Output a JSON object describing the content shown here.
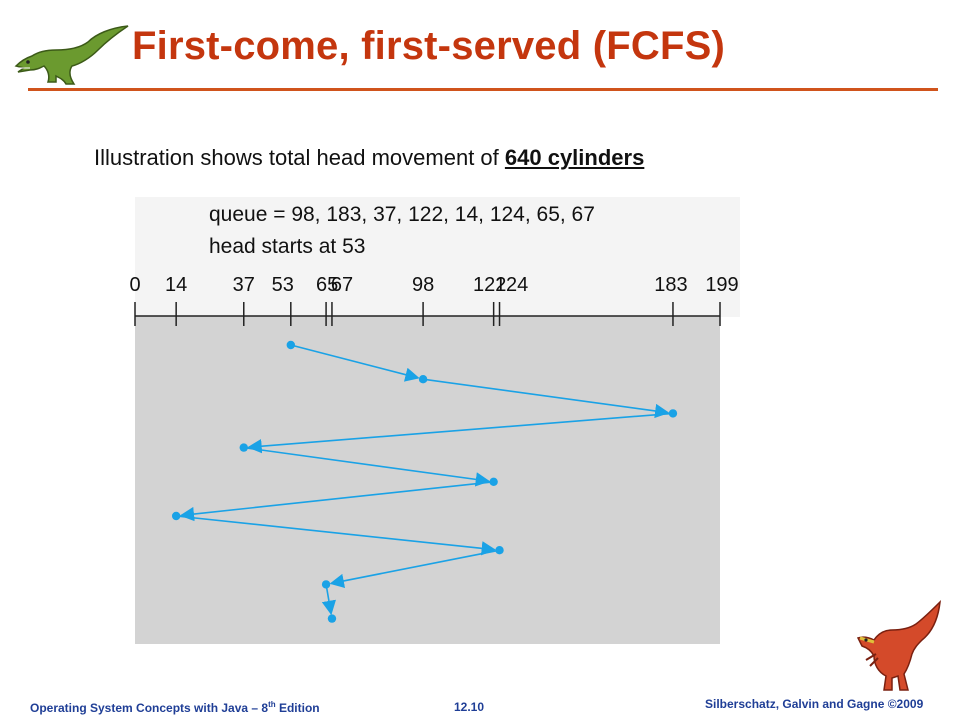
{
  "slide": {
    "title": "First-come, first-served (FCFS)",
    "subtitle_prefix": "Illustration shows total head movement of ",
    "subtitle_emphasis": "640 cylinders"
  },
  "chart_data": {
    "type": "line",
    "queue_label": "queue = 98, 183, 37, 122, 14, 124, 65, 67",
    "head_label": "head starts at 53",
    "axis_ticks": [
      0,
      14,
      37,
      53,
      65,
      67,
      98,
      122,
      124,
      183,
      199
    ],
    "xlim": [
      0,
      199
    ],
    "sequence": [
      53,
      98,
      183,
      37,
      122,
      14,
      124,
      65,
      67
    ],
    "line_color": "#1aa2e6",
    "plot_bg": "#d3d3d3"
  },
  "footer": {
    "course": "Operating System Concepts  with Java – 8",
    "edition_sup": "th",
    "edition_word": " Edition",
    "slide_number": "12.10",
    "authors": "Silberschatz, Galvin and Gagne ©2009"
  },
  "colors": {
    "title": "#c4360e",
    "rule": "#d0541c",
    "footer": "#1f3e96"
  },
  "icons": [
    "green-dinosaur-icon",
    "red-dinosaur-icon"
  ]
}
